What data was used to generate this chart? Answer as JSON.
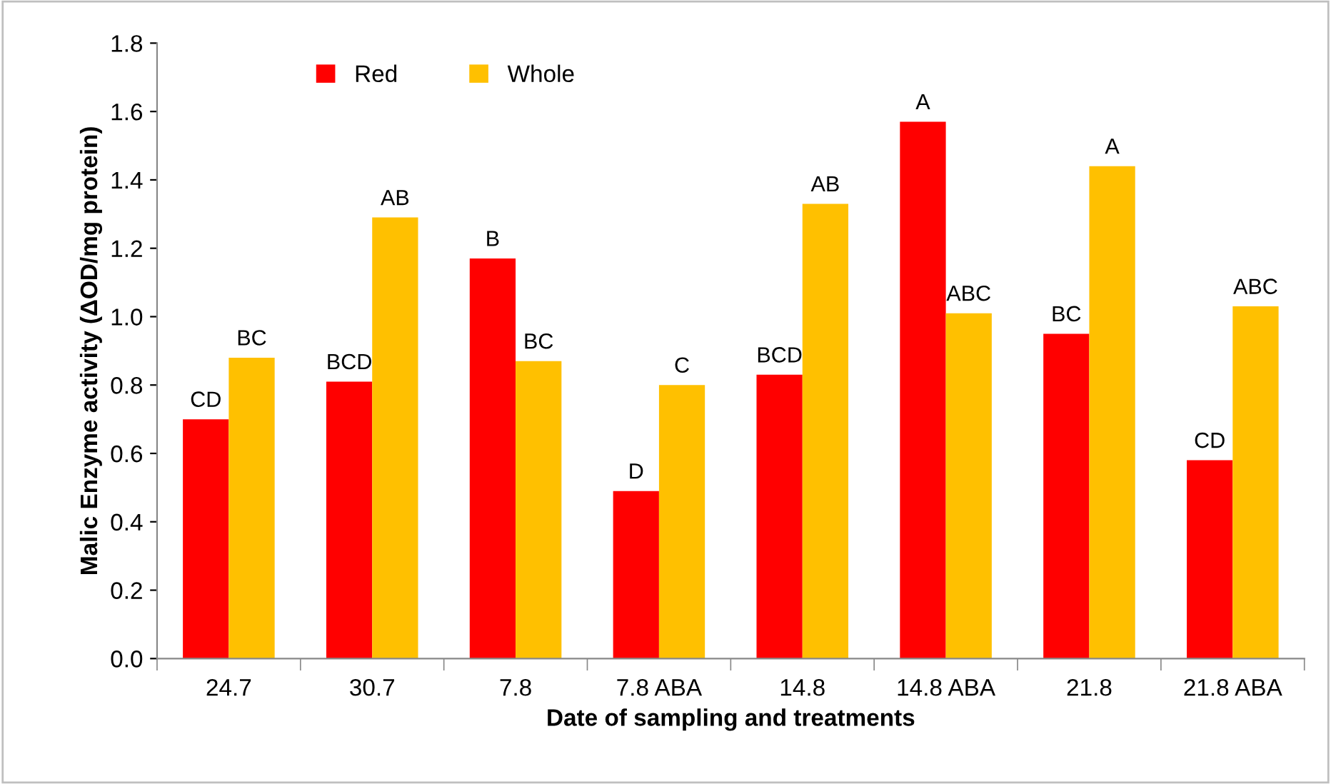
{
  "chart_data": {
    "type": "bar",
    "xlabel": "Date of sampling and treatments",
    "ylabel": "Malic Enzyme activity (ΔOD/mg protein)",
    "categories": [
      "24.7",
      "30.7",
      "7.8",
      "7.8 ABA",
      "14.8",
      "14.8 ABA",
      "21.8",
      "21.8 ABA"
    ],
    "series": [
      {
        "name": "Red",
        "color": "#ff0000",
        "values": [
          0.7,
          0.81,
          1.17,
          0.49,
          0.83,
          1.57,
          0.95,
          0.58
        ],
        "value_labels": [
          "CD",
          "BCD",
          "B",
          "D",
          "BCD",
          "A",
          "BC",
          "CD"
        ]
      },
      {
        "name": "Whole",
        "color": "#ffc000",
        "values": [
          0.88,
          1.29,
          0.87,
          0.8,
          1.33,
          1.01,
          1.44,
          1.03
        ],
        "value_labels": [
          "BC",
          "AB",
          "BC",
          "C",
          "AB",
          "ABC",
          "A",
          "ABC"
        ]
      }
    ],
    "ylim": [
      0,
      1.8
    ],
    "yticks": [
      {
        "value": 0,
        "label": "0.0"
      },
      {
        "value": 0.2,
        "label": "0.2"
      },
      {
        "value": 0.4,
        "label": "0.4"
      },
      {
        "value": 0.6,
        "label": "0.6"
      },
      {
        "value": 0.8,
        "label": "0.8"
      },
      {
        "value": 1.0,
        "label": "1.0"
      },
      {
        "value": 1.2,
        "label": "1.2"
      },
      {
        "value": 1.4,
        "label": "1.4"
      },
      {
        "value": 1.6,
        "label": "1.6"
      },
      {
        "value": 1.8,
        "label": "1.8"
      }
    ],
    "legend": "top left",
    "grid": false
  }
}
